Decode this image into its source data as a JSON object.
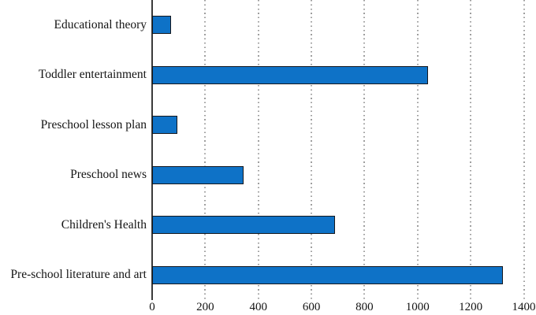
{
  "chart_data": {
    "type": "bar",
    "orientation": "horizontal",
    "title": "",
    "xlabel": "",
    "ylabel": "",
    "categories": [
      "Educational theory",
      "Toddler entertainment",
      "Preschool lesson plan",
      "Preschool news",
      "Children's Health",
      "Pre-school literature and art"
    ],
    "values": [
      70,
      1040,
      95,
      345,
      690,
      1320
    ],
    "xlim": [
      0,
      1400
    ],
    "xticks": [
      0,
      200,
      400,
      600,
      800,
      1000,
      1200,
      1400
    ],
    "legend": "none",
    "grid": "vertical dotted gridlines",
    "colors": {
      "bar_fill": "#0e72c7",
      "bar_edge": "#16181d",
      "gridline": "#9e9e9e",
      "axis_line": "#3a3a3a",
      "text": "#141414",
      "background": "#ffffff"
    }
  }
}
